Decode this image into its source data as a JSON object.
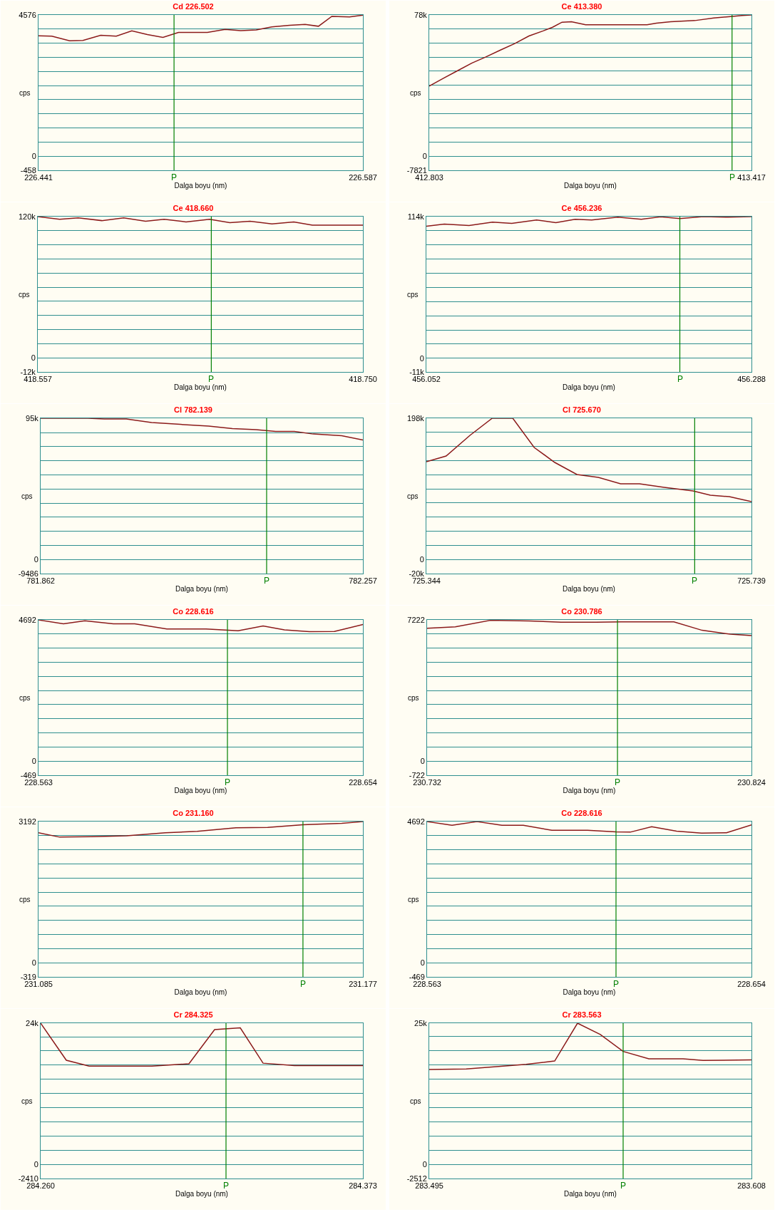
{
  "chart_data": [
    {
      "type": "line",
      "title": "Cd 226.502",
      "xlabel": "Dalga boyu (nm)",
      "ylabel": "cps",
      "grid": "y",
      "xlim": [
        226.441,
        226.587
      ],
      "xticks": [
        226.441,
        226.587
      ],
      "ylim": [
        -458,
        4576
      ],
      "yticks": [
        4576,
        {
          "value": 4118,
          "label": null
        },
        {
          "value": 3661,
          "label": null
        },
        {
          "value": 3203,
          "label": null
        },
        {
          "value": 2746,
          "label": null
        },
        {
          "value": 2288,
          "label": null
        },
        {
          "value": 1830,
          "label": null
        },
        {
          "value": 1373,
          "label": null
        },
        {
          "value": 915,
          "label": null
        },
        {
          "value": 458,
          "label": null
        },
        0,
        -458
      ],
      "ref_lines": [
        {
          "axis": "x",
          "value": 226.502,
          "label": "P",
          "color": "#008000"
        }
      ],
      "x": [
        226.441,
        226.447,
        226.455,
        226.461,
        226.469,
        226.476,
        226.483,
        226.49,
        226.497,
        226.504,
        226.517,
        226.525,
        226.532,
        226.539,
        226.546,
        226.554,
        226.561,
        226.567,
        226.573,
        226.581,
        226.587
      ],
      "series": [
        {
          "color": "#8b1a1a",
          "values": [
            3900,
            3890,
            3740,
            3750,
            3920,
            3890,
            4060,
            3940,
            3850,
            4010,
            4010,
            4110,
            4070,
            4090,
            4190,
            4240,
            4270,
            4210,
            4530,
            4510,
            4570
          ]
        }
      ]
    },
    {
      "type": "line",
      "title": "Ce 413.380",
      "xlabel": "Dalga boyu (nm)",
      "ylabel": "cps",
      "grid": "y",
      "xlim": [
        412.803,
        413.417
      ],
      "xticks": [
        412.803,
        413.417
      ],
      "ylim": [
        -7821,
        78000
      ],
      "yticks": [
        {
          "value": 78000,
          "label": "78k"
        },
        {
          "value": 70389,
          "label": null
        },
        {
          "value": 62568,
          "label": null
        },
        {
          "value": 54747,
          "label": null
        },
        {
          "value": 46926,
          "label": null
        },
        {
          "value": 39105,
          "label": null
        },
        {
          "value": 31284,
          "label": null
        },
        {
          "value": 23463,
          "label": null
        },
        {
          "value": 15642,
          "label": null
        },
        {
          "value": 7821,
          "label": null
        },
        0,
        -7821
      ],
      "ref_lines": [
        {
          "axis": "x",
          "value": 413.38,
          "label": "P",
          "color": "#008000"
        }
      ],
      "x": [
        412.803,
        412.83,
        412.857,
        412.884,
        412.911,
        412.938,
        412.966,
        412.993,
        413.02,
        413.038,
        413.056,
        413.074,
        413.101,
        413.128,
        413.218,
        413.236,
        413.263,
        413.309,
        413.345,
        413.381,
        413.399,
        413.417
      ],
      "series": [
        {
          "color": "#8b1a1a",
          "values": [
            38700,
            43000,
            47200,
            51400,
            54800,
            58500,
            62200,
            66400,
            69200,
            71200,
            74000,
            74300,
            72600,
            72600,
            72600,
            73500,
            74300,
            74900,
            76300,
            77200,
            77700,
            78000
          ]
        }
      ]
    },
    {
      "type": "line",
      "title": "Ce 418.660",
      "xlabel": "Dalga boyu (nm)",
      "ylabel": "cps",
      "grid": "y",
      "xlim": [
        418.557,
        418.75
      ],
      "xticks": [
        418.557,
        {
          "value": 418.75,
          "label": "418.750"
        }
      ],
      "ylim": [
        -12000,
        120000
      ],
      "yticks": [
        {
          "value": 120000,
          "label": "120k"
        },
        {
          "value": 108000,
          "label": null
        },
        {
          "value": 96000,
          "label": null
        },
        {
          "value": 84000,
          "label": null
        },
        {
          "value": 72000,
          "label": null
        },
        {
          "value": 60000,
          "label": null
        },
        {
          "value": 48000,
          "label": null
        },
        {
          "value": 36000,
          "label": null
        },
        {
          "value": 24000,
          "label": null
        },
        {
          "value": 12000,
          "label": null
        },
        0,
        {
          "value": -12000,
          "label": "-12k"
        }
      ],
      "ref_lines": [
        {
          "axis": "x",
          "value": 418.66,
          "label": "P",
          "color": "#008000"
        }
      ],
      "x": [
        418.557,
        418.57,
        418.581,
        418.595,
        418.608,
        418.621,
        418.632,
        418.645,
        418.659,
        418.671,
        418.683,
        418.696,
        418.709,
        418.72,
        418.737,
        418.75
      ],
      "series": [
        {
          "color": "#8b1a1a",
          "values": [
            120000,
            117700,
            118900,
            116600,
            118900,
            116100,
            117700,
            115500,
            117700,
            114900,
            116100,
            113800,
            115500,
            112700,
            112700,
            112700
          ]
        }
      ]
    },
    {
      "type": "line",
      "title": "Ce 456.236",
      "xlabel": "Dalga boyu (nm)",
      "ylabel": "cps",
      "grid": "y",
      "xlim": [
        456.052,
        456.288
      ],
      "xticks": [
        456.052,
        456.288
      ],
      "ylim": [
        -11000,
        114000
      ],
      "yticks": [
        {
          "value": 114000,
          "label": "114k"
        },
        {
          "value": 102600,
          "label": null
        },
        {
          "value": 91200,
          "label": null
        },
        {
          "value": 79800,
          "label": null
        },
        {
          "value": 68400,
          "label": null
        },
        {
          "value": 57000,
          "label": null
        },
        {
          "value": 45600,
          "label": null
        },
        {
          "value": 34200,
          "label": null
        },
        {
          "value": 22800,
          "label": null
        },
        {
          "value": 11400,
          "label": null
        },
        0,
        {
          "value": -11000,
          "label": "-11k"
        }
      ],
      "ref_lines": [
        {
          "axis": "x",
          "value": 456.236,
          "label": "P",
          "color": "#008000"
        }
      ],
      "x": [
        456.052,
        456.065,
        456.083,
        456.1,
        456.114,
        456.132,
        456.146,
        456.16,
        456.172,
        456.191,
        456.208,
        456.222,
        456.236,
        456.253,
        456.271,
        456.288
      ],
      "series": [
        {
          "color": "#8b1a1a",
          "values": [
            106300,
            108000,
            106900,
            109600,
            108500,
            111300,
            109100,
            111900,
            111300,
            113500,
            111900,
            113800,
            112400,
            114000,
            113500,
            114000
          ]
        }
      ]
    },
    {
      "type": "line",
      "title": "Cl 782.139",
      "xlabel": "Dalga boyu (nm)",
      "ylabel": "cps",
      "grid": "y",
      "xlim": [
        781.862,
        782.257
      ],
      "xticks": [
        781.862,
        782.257
      ],
      "ylim": [
        -9486,
        95000
      ],
      "yticks": [
        {
          "value": 95000,
          "label": "95k"
        },
        {
          "value": 85374,
          "label": null
        },
        {
          "value": 75888,
          "label": null
        },
        {
          "value": 66402,
          "label": null
        },
        {
          "value": 56916,
          "label": null
        },
        {
          "value": 47430,
          "label": null
        },
        {
          "value": 37944,
          "label": null
        },
        {
          "value": 28458,
          "label": null
        },
        {
          "value": 18972,
          "label": null
        },
        {
          "value": 9486,
          "label": null
        },
        0,
        -9486
      ],
      "ref_lines": [
        {
          "axis": "x",
          "value": 782.139,
          "label": "P",
          "color": "#008000"
        }
      ],
      "x": [
        781.862,
        781.92,
        781.94,
        781.967,
        781.998,
        782.033,
        782.068,
        782.097,
        782.126,
        782.15,
        782.173,
        782.196,
        782.231,
        782.257
      ],
      "series": [
        {
          "color": "#8b1a1a",
          "values": [
            95000,
            95000,
            94500,
            94500,
            92100,
            90900,
            89700,
            88100,
            87300,
            86100,
            86100,
            84400,
            83200,
            80400
          ]
        }
      ]
    },
    {
      "type": "line",
      "title": "Cl 725.670",
      "xlabel": "Dalga boyu (nm)",
      "ylabel": "cps",
      "grid": "y",
      "xlim": [
        725.344,
        725.739
      ],
      "xticks": [
        725.344,
        725.739
      ],
      "ylim": [
        -20000,
        198000
      ],
      "yticks": [
        {
          "value": 198000,
          "label": "198k"
        },
        {
          "value": 178200,
          "label": null
        },
        {
          "value": 158400,
          "label": null
        },
        {
          "value": 138600,
          "label": null
        },
        {
          "value": 118800,
          "label": null
        },
        {
          "value": 99000,
          "label": null
        },
        {
          "value": 79200,
          "label": null
        },
        {
          "value": 59400,
          "label": null
        },
        {
          "value": 39600,
          "label": null
        },
        {
          "value": 19800,
          "label": null
        },
        0,
        {
          "value": -20000,
          "label": "-20k"
        }
      ],
      "ref_lines": [
        {
          "axis": "x",
          "value": 725.67,
          "label": "P",
          "color": "#008000"
        }
      ],
      "x": [
        725.344,
        725.368,
        725.397,
        725.424,
        725.449,
        725.475,
        725.5,
        725.527,
        725.553,
        725.58,
        725.603,
        725.633,
        725.668,
        725.689,
        725.712,
        725.739
      ],
      "series": [
        {
          "color": "#8b1a1a",
          "values": [
            137000,
            145000,
            174000,
            198000,
            198000,
            157000,
            136000,
            119000,
            115000,
            106000,
            106000,
            101000,
            96000,
            90000,
            88000,
            81000
          ]
        }
      ]
    },
    {
      "type": "line",
      "title": "Co 228.616",
      "xlabel": "Dalga boyu (nm)",
      "ylabel": "cps",
      "grid": "y",
      "xlim": [
        228.563,
        228.654
      ],
      "xticks": [
        228.563,
        228.654
      ],
      "ylim": [
        -469,
        4692
      ],
      "yticks": [
        4692,
        {
          "value": 4223,
          "label": null
        },
        {
          "value": 3754,
          "label": null
        },
        {
          "value": 3284,
          "label": null
        },
        {
          "value": 2815,
          "label": null
        },
        {
          "value": 2346,
          "label": null
        },
        {
          "value": 1877,
          "label": null
        },
        {
          "value": 1408,
          "label": null
        },
        {
          "value": 938,
          "label": null
        },
        {
          "value": 469,
          "label": null
        },
        0,
        -469
      ],
      "ref_lines": [
        {
          "axis": "x",
          "value": 228.616,
          "label": "P",
          "color": "#008000"
        }
      ],
      "x": [
        228.563,
        228.57,
        228.576,
        228.584,
        228.59,
        228.599,
        228.61,
        228.619,
        228.626,
        228.632,
        228.639,
        228.646,
        228.654
      ],
      "series": [
        {
          "color": "#8b1a1a",
          "values": [
            4690,
            4560,
            4660,
            4560,
            4560,
            4390,
            4390,
            4330,
            4490,
            4360,
            4300,
            4310,
            4540
          ]
        }
      ]
    },
    {
      "type": "line",
      "title": "Co 230.786",
      "xlabel": "Dalga boyu (nm)",
      "ylabel": "cps",
      "grid": "y",
      "xlim": [
        230.732,
        230.824
      ],
      "xticks": [
        230.732,
        230.824
      ],
      "ylim": [
        -722,
        7222
      ],
      "yticks": [
        7222,
        {
          "value": 6500,
          "label": null
        },
        {
          "value": 5778,
          "label": null
        },
        {
          "value": 5055,
          "label": null
        },
        {
          "value": 4333,
          "label": null
        },
        {
          "value": 3611,
          "label": null
        },
        {
          "value": 2889,
          "label": null
        },
        {
          "value": 2167,
          "label": null
        },
        {
          "value": 1444,
          "label": null
        },
        {
          "value": 722,
          "label": null
        },
        0,
        -722
      ],
      "ref_lines": [
        {
          "axis": "x",
          "value": 230.786,
          "label": "P",
          "color": "#008000"
        }
      ],
      "x": [
        230.732,
        230.74,
        230.75,
        230.761,
        230.77,
        230.78,
        230.787,
        230.792,
        230.802,
        230.81,
        230.818,
        230.824
      ],
      "series": [
        {
          "color": "#8b1a1a",
          "values": [
            6790,
            6870,
            7200,
            7170,
            7100,
            7100,
            7120,
            7120,
            7120,
            6690,
            6490,
            6420
          ]
        }
      ]
    },
    {
      "type": "line",
      "title": "Co 231.160",
      "xlabel": "Dalga boyu (nm)",
      "ylabel": "cps",
      "grid": "y",
      "xlim": [
        231.085,
        231.177
      ],
      "xticks": [
        231.085,
        231.177
      ],
      "ylim": [
        -319,
        3192
      ],
      "yticks": [
        3192,
        {
          "value": 2873,
          "label": null
        },
        {
          "value": 2554,
          "label": null
        },
        {
          "value": 2234,
          "label": null
        },
        {
          "value": 1915,
          "label": null
        },
        {
          "value": 1596,
          "label": null
        },
        {
          "value": 1277,
          "label": null
        },
        {
          "value": 958,
          "label": null
        },
        {
          "value": 638,
          "label": null
        },
        {
          "value": 319,
          "label": null
        },
        0,
        -319
      ],
      "ref_lines": [
        {
          "axis": "x",
          "value": 231.16,
          "label": "P",
          "color": "#008000"
        }
      ],
      "x": [
        231.085,
        231.091,
        231.1,
        231.11,
        231.121,
        231.13,
        231.141,
        231.15,
        231.16,
        231.171,
        231.177
      ],
      "series": [
        {
          "color": "#8b1a1a",
          "values": [
            2940,
            2840,
            2850,
            2870,
            2940,
            2970,
            3050,
            3060,
            3120,
            3150,
            3190
          ]
        }
      ]
    },
    {
      "type": "line",
      "title": "Co 228.616",
      "xlabel": "Dalga boyu (nm)",
      "ylabel": "cps",
      "grid": "y",
      "xlim": [
        228.563,
        228.654
      ],
      "xticks": [
        228.563,
        228.654
      ],
      "ylim": [
        -469,
        4692
      ],
      "yticks": [
        4692,
        {
          "value": 4223,
          "label": null
        },
        {
          "value": 3754,
          "label": null
        },
        {
          "value": 3284,
          "label": null
        },
        {
          "value": 2815,
          "label": null
        },
        {
          "value": 2346,
          "label": null
        },
        {
          "value": 1877,
          "label": null
        },
        {
          "value": 1408,
          "label": null
        },
        {
          "value": 938,
          "label": null
        },
        {
          "value": 469,
          "label": null
        },
        0,
        -469
      ],
      "ref_lines": [
        {
          "axis": "x",
          "value": 228.616,
          "label": "P",
          "color": "#008000"
        }
      ],
      "x": [
        228.563,
        228.57,
        228.577,
        228.584,
        228.59,
        228.598,
        228.608,
        228.616,
        228.62,
        228.626,
        228.633,
        228.64,
        228.647,
        228.654
      ],
      "series": [
        {
          "color": "#8b1a1a",
          "values": [
            4690,
            4570,
            4690,
            4570,
            4570,
            4400,
            4400,
            4350,
            4340,
            4520,
            4370,
            4310,
            4320,
            4580
          ]
        }
      ]
    },
    {
      "type": "line",
      "title": "Cr 284.325",
      "xlabel": "Dalga boyu (nm)",
      "ylabel": "cps",
      "grid": "y",
      "xlim": [
        284.26,
        284.373
      ],
      "xticks": [
        {
          "value": 284.26,
          "label": "284.260"
        },
        284.373
      ],
      "ylim": [
        -2410,
        24000
      ],
      "yticks": [
        {
          "value": 24000,
          "label": "24k"
        },
        {
          "value": 21690,
          "label": null
        },
        {
          "value": 19280,
          "label": null
        },
        {
          "value": 16870,
          "label": null
        },
        {
          "value": 14460,
          "label": null
        },
        {
          "value": 12050,
          "label": null
        },
        {
          "value": 9640,
          "label": null
        },
        {
          "value": 7230,
          "label": null
        },
        {
          "value": 4820,
          "label": null
        },
        {
          "value": 2410,
          "label": null
        },
        0,
        -2410
      ],
      "ref_lines": [
        {
          "axis": "x",
          "value": 284.325,
          "label": "P",
          "color": "#008000"
        }
      ],
      "x": [
        284.26,
        284.269,
        284.277,
        284.299,
        284.312,
        284.321,
        284.33,
        284.338,
        284.349,
        284.373
      ],
      "series": [
        {
          "color": "#8b1a1a",
          "values": [
            24000,
            17700,
            16700,
            16700,
            17100,
            22900,
            23200,
            17200,
            16800,
            16800
          ]
        }
      ]
    },
    {
      "type": "line",
      "title": "Cr 283.563",
      "xlabel": "Dalga boyu (nm)",
      "ylabel": "cps",
      "grid": "y",
      "xlim": [
        283.495,
        283.608
      ],
      "xticks": [
        283.495,
        283.608
      ],
      "ylim": [
        -2512,
        25000
      ],
      "yticks": [
        {
          "value": 25000,
          "label": "25k"
        },
        {
          "value": 22608,
          "label": null
        },
        {
          "value": 20096,
          "label": null
        },
        {
          "value": 17584,
          "label": null
        },
        {
          "value": 15072,
          "label": null
        },
        {
          "value": 12560,
          "label": null
        },
        {
          "value": 10048,
          "label": null
        },
        {
          "value": 7536,
          "label": null
        },
        {
          "value": 5024,
          "label": null
        },
        {
          "value": 2512,
          "label": null
        },
        0,
        -2512
      ],
      "ref_lines": [
        {
          "axis": "x",
          "value": 283.563,
          "label": "P",
          "color": "#008000"
        }
      ],
      "x": [
        283.495,
        283.508,
        283.529,
        283.539,
        283.547,
        283.555,
        283.563,
        283.572,
        283.584,
        283.591,
        283.608
      ],
      "series": [
        {
          "color": "#8b1a1a",
          "values": [
            16800,
            16900,
            17700,
            18300,
            25000,
            23000,
            20000,
            18700,
            18700,
            18400,
            18500
          ]
        }
      ]
    }
  ]
}
